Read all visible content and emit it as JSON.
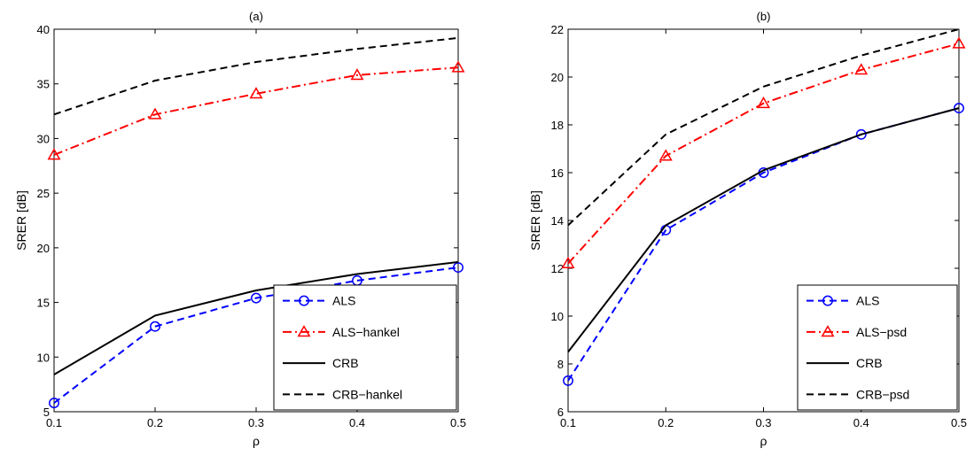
{
  "chart_data": [
    {
      "type": "line",
      "title": "(a)",
      "xlabel": "ρ",
      "ylabel": "SRER [dB]",
      "x": [
        0.1,
        0.2,
        0.3,
        0.4,
        0.5
      ],
      "xlim": [
        0.1,
        0.5
      ],
      "ylim": [
        5,
        40
      ],
      "xticks": [
        "0.1",
        "0.2",
        "0.3",
        "0.4",
        "0.5"
      ],
      "yticks": [
        "5",
        "10",
        "15",
        "20",
        "25",
        "30",
        "35",
        "40"
      ],
      "grid": false,
      "legend_position": "bottom-right",
      "series": [
        {
          "name": "ALS",
          "values": [
            5.8,
            12.8,
            15.4,
            17.0,
            18.2
          ],
          "color": "#0000ff",
          "dash": "dashed",
          "marker": "circle"
        },
        {
          "name": "ALS−hankel",
          "values": [
            28.5,
            32.2,
            34.1,
            35.8,
            36.5
          ],
          "color": "#ff0000",
          "dash": "dashdot",
          "marker": "triangle"
        },
        {
          "name": "CRB",
          "values": [
            8.4,
            13.8,
            16.1,
            17.6,
            18.7
          ],
          "color": "#000000",
          "dash": "solid",
          "marker": "none"
        },
        {
          "name": "CRB−hankel",
          "values": [
            32.2,
            35.3,
            37.0,
            38.2,
            39.2
          ],
          "color": "#000000",
          "dash": "dashed",
          "marker": "none"
        }
      ]
    },
    {
      "type": "line",
      "title": "(b)",
      "xlabel": "ρ",
      "ylabel": "SRER [dB]",
      "x": [
        0.1,
        0.2,
        0.3,
        0.4,
        0.5
      ],
      "xlim": [
        0.1,
        0.5
      ],
      "ylim": [
        6,
        22
      ],
      "xticks": [
        "0.1",
        "0.2",
        "0.3",
        "0.4",
        "0.5"
      ],
      "yticks": [
        "6",
        "8",
        "10",
        "12",
        "14",
        "16",
        "18",
        "20",
        "22"
      ],
      "grid": false,
      "legend_position": "bottom-right",
      "series": [
        {
          "name": "ALS",
          "values": [
            7.3,
            13.6,
            16.0,
            17.6,
            18.7
          ],
          "color": "#0000ff",
          "dash": "dashed",
          "marker": "circle"
        },
        {
          "name": "ALS−psd",
          "values": [
            12.2,
            16.7,
            18.9,
            20.3,
            21.4
          ],
          "color": "#ff0000",
          "dash": "dashdot",
          "marker": "triangle"
        },
        {
          "name": "CRB",
          "values": [
            8.5,
            13.8,
            16.1,
            17.6,
            18.7
          ],
          "color": "#000000",
          "dash": "solid",
          "marker": "none"
        },
        {
          "name": "CRB−psd",
          "values": [
            13.8,
            17.6,
            19.6,
            20.9,
            22.0
          ],
          "color": "#000000",
          "dash": "dashed",
          "marker": "none"
        }
      ]
    }
  ]
}
